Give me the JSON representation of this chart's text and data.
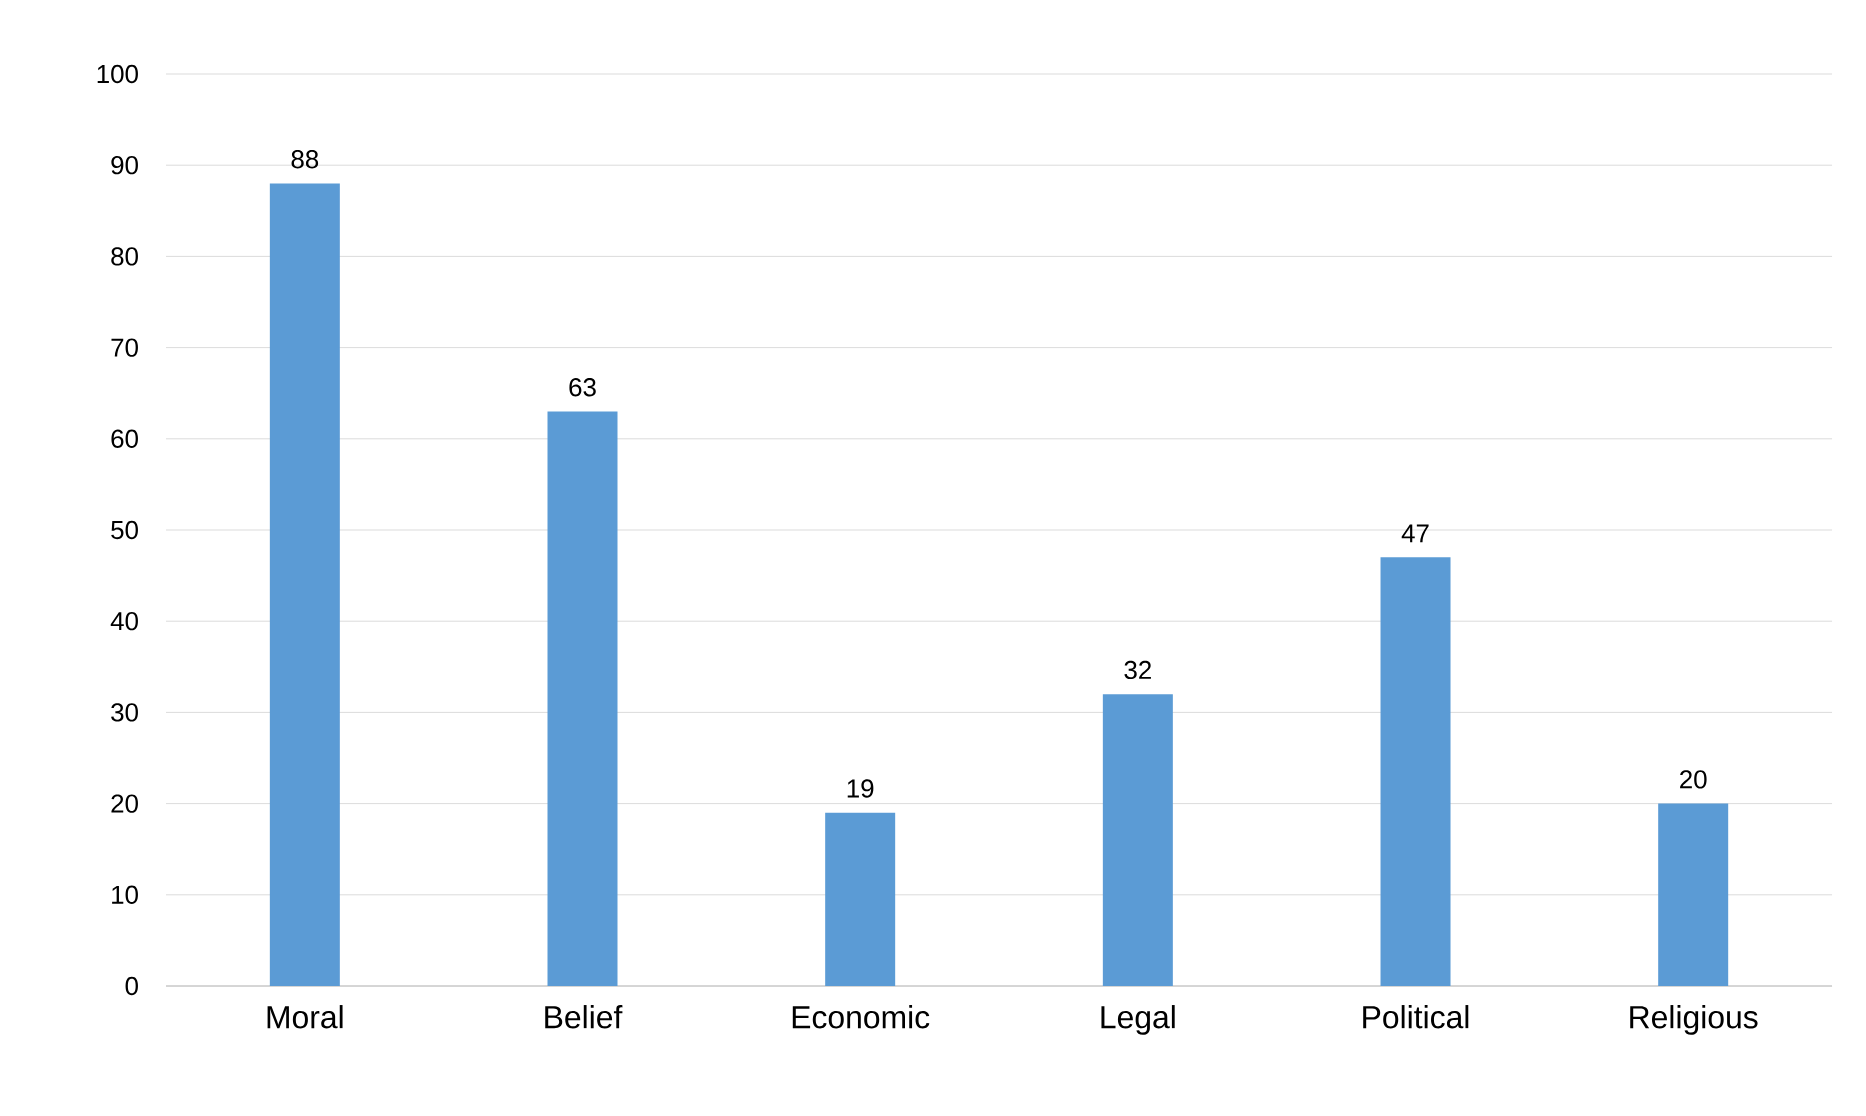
{
  "chart_data": {
    "type": "bar",
    "categories": [
      "Moral",
      "Belief",
      "Economic",
      "Legal",
      "Political",
      "Religious"
    ],
    "values": [
      88,
      63,
      19,
      32,
      47,
      20
    ],
    "color": "#5b9bd5",
    "ylim": [
      0,
      100
    ],
    "yticks": [
      0,
      10,
      20,
      30,
      40,
      50,
      60,
      70,
      80,
      90,
      100
    ],
    "grid": "y",
    "data_labels": true
  }
}
